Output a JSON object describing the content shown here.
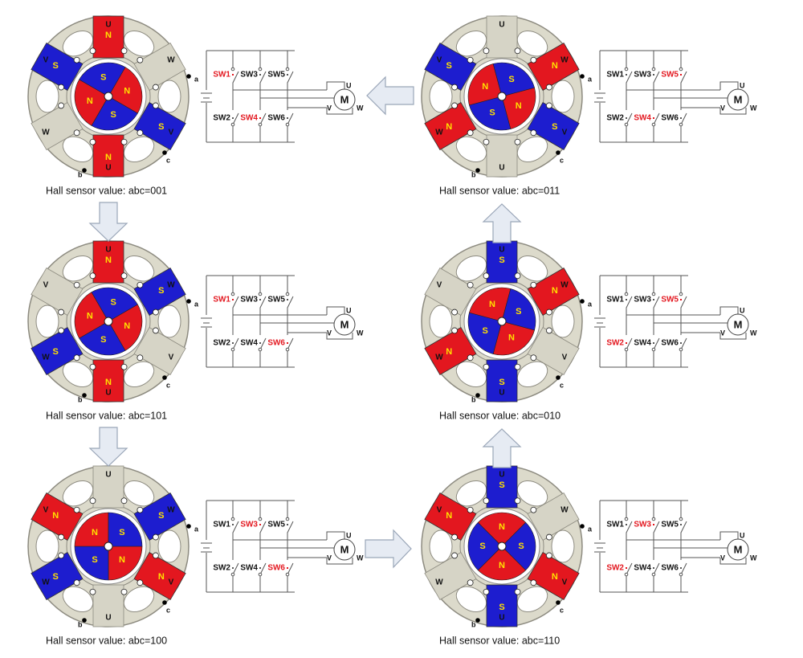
{
  "labels": {
    "phases": [
      "U",
      "V",
      "W"
    ],
    "sensors": [
      "a",
      "b",
      "c"
    ],
    "motor": "M",
    "switches": [
      "SW1",
      "SW2",
      "SW3",
      "SW4",
      "SW5",
      "SW6"
    ]
  },
  "colors": {
    "north": "#e3171f",
    "south": "#1d1dcf",
    "active_switch": "#e3171f",
    "idle_pole": "#d6d4c6"
  },
  "panels": [
    {
      "caption": "Hall sensor value: abc=001",
      "stator_poles": [
        "N",
        null,
        "S",
        "N",
        null,
        "S"
      ],
      "rotor_poles": [
        "N",
        "S",
        "N",
        "S"
      ],
      "active_switches": [
        true,
        false,
        false,
        true,
        false,
        false
      ]
    },
    {
      "caption": "Hall sensor value: abc=101",
      "stator_poles": [
        "N",
        "S",
        null,
        "N",
        "S",
        null
      ],
      "rotor_poles": [
        "N",
        "S",
        "N",
        "S"
      ],
      "active_switches": [
        true,
        false,
        false,
        false,
        false,
        true
      ]
    },
    {
      "caption": "Hall sensor value: abc=100",
      "stator_poles": [
        null,
        "S",
        "N",
        null,
        "S",
        "N"
      ],
      "rotor_poles": [
        "N",
        "S",
        "N",
        "S"
      ],
      "active_switches": [
        false,
        false,
        true,
        false,
        false,
        true
      ]
    },
    {
      "caption": "Hall sensor value: abc=011",
      "stator_poles": [
        null,
        "N",
        "S",
        null,
        "N",
        "S"
      ],
      "rotor_poles": [
        "N",
        "S",
        "N",
        "S"
      ],
      "active_switches": [
        false,
        false,
        false,
        true,
        true,
        false
      ]
    },
    {
      "caption": "Hall sensor value: abc=010",
      "stator_poles": [
        "S",
        "N",
        null,
        "S",
        "N",
        null
      ],
      "rotor_poles": [
        "N",
        "S",
        "N",
        "S"
      ],
      "active_switches": [
        false,
        true,
        false,
        false,
        true,
        false
      ]
    },
    {
      "caption": "Hall sensor value: abc=110",
      "stator_poles": [
        "S",
        null,
        "N",
        "S",
        null,
        "N"
      ],
      "rotor_poles": [
        "N",
        "S",
        "N",
        "S"
      ],
      "active_switches": [
        false,
        true,
        true,
        false,
        false,
        false
      ]
    }
  ]
}
